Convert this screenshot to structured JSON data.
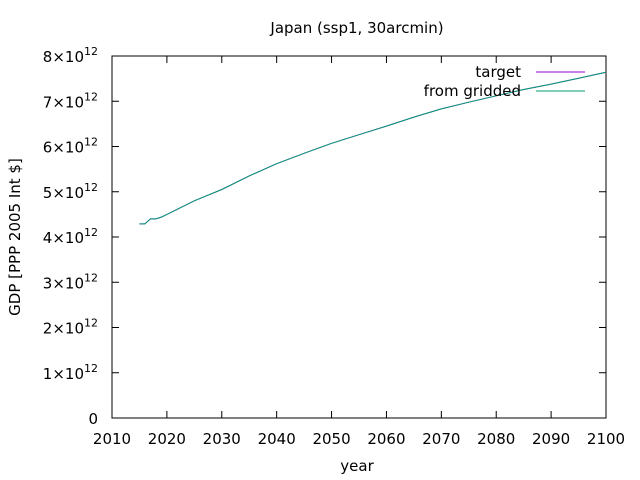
{
  "chart_data": {
    "type": "line",
    "title": "Japan (ssp1, 30arcmin)",
    "xlabel": "year",
    "ylabel": "GDP [PPP 2005 Int $]",
    "xlim": [
      2010,
      2100
    ],
    "ylim": [
      0,
      8000000000000
    ],
    "xticks": [
      {
        "value": 2010,
        "label": "2010"
      },
      {
        "value": 2020,
        "label": "2020"
      },
      {
        "value": 2030,
        "label": "2030"
      },
      {
        "value": 2040,
        "label": "2040"
      },
      {
        "value": 2050,
        "label": "2050"
      },
      {
        "value": 2060,
        "label": "2060"
      },
      {
        "value": 2070,
        "label": "2070"
      },
      {
        "value": 2080,
        "label": "2080"
      },
      {
        "value": 2090,
        "label": "2090"
      },
      {
        "value": 2100,
        "label": "2100"
      }
    ],
    "yticks": [
      {
        "value": 0,
        "mantissa": "0",
        "exp": ""
      },
      {
        "value": 1000000000000,
        "mantissa": "1×10",
        "exp": "12"
      },
      {
        "value": 2000000000000,
        "mantissa": "2×10",
        "exp": "12"
      },
      {
        "value": 3000000000000,
        "mantissa": "3×10",
        "exp": "12"
      },
      {
        "value": 4000000000000,
        "mantissa": "4×10",
        "exp": "12"
      },
      {
        "value": 5000000000000,
        "mantissa": "5×10",
        "exp": "12"
      },
      {
        "value": 6000000000000,
        "mantissa": "6×10",
        "exp": "12"
      },
      {
        "value": 7000000000000,
        "mantissa": "7×10",
        "exp": "12"
      },
      {
        "value": 8000000000000,
        "mantissa": "8×10",
        "exp": "12"
      }
    ],
    "legend_position": "top-right",
    "grid": false,
    "series": [
      {
        "name": "target",
        "color": "#9400d3",
        "x": [
          2015,
          2016,
          2017,
          2018,
          2019,
          2020,
          2025,
          2030,
          2035,
          2040,
          2045,
          2050,
          2055,
          2060,
          2065,
          2070,
          2075,
          2080,
          2085,
          2090,
          2095,
          2100
        ],
        "y": [
          4290000000000,
          4290000000000,
          4400000000000,
          4400000000000,
          4440000000000,
          4500000000000,
          4800000000000,
          5050000000000,
          5350000000000,
          5620000000000,
          5850000000000,
          6070000000000,
          6260000000000,
          6450000000000,
          6650000000000,
          6830000000000,
          6980000000000,
          7120000000000,
          7260000000000,
          7380000000000,
          7510000000000,
          7640000000000
        ]
      },
      {
        "name": "from gridded",
        "color": "#009e73",
        "x": [
          2015,
          2016,
          2017,
          2018,
          2019,
          2020,
          2025,
          2030,
          2035,
          2040,
          2045,
          2050,
          2055,
          2060,
          2065,
          2070,
          2075,
          2080,
          2085,
          2090,
          2095,
          2100
        ],
        "y": [
          4290000000000,
          4290000000000,
          4400000000000,
          4400000000000,
          4440000000000,
          4500000000000,
          4800000000000,
          5050000000000,
          5350000000000,
          5620000000000,
          5850000000000,
          6070000000000,
          6260000000000,
          6450000000000,
          6650000000000,
          6830000000000,
          6980000000000,
          7120000000000,
          7260000000000,
          7380000000000,
          7510000000000,
          7640000000000
        ]
      }
    ]
  }
}
